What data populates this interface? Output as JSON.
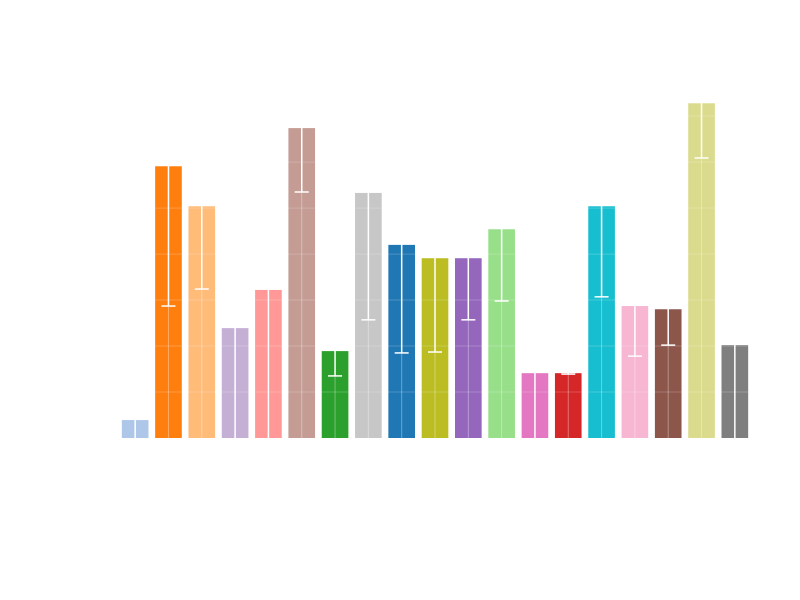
{
  "chart_data": {
    "type": "bar",
    "title": "",
    "xlabel": "",
    "ylabel": "",
    "x": [
      0,
      1,
      2,
      3,
      4,
      5,
      6,
      7,
      8,
      9,
      10,
      11,
      12,
      13,
      14,
      15,
      16,
      17,
      18
    ],
    "values": [
      0.39,
      5.91,
      5.04,
      2.39,
      3.22,
      6.74,
      1.89,
      5.33,
      4.2,
      3.91,
      3.91,
      4.54,
      1.41,
      1.41,
      5.04,
      2.87,
      2.8,
      7.28,
      2.02
    ],
    "errors": [
      0.6,
      3.04,
      1.8,
      2.6,
      3.4,
      1.39,
      0.54,
      2.76,
      2.35,
      2.04,
      1.34,
      1.56,
      1.6,
      0.02,
      1.97,
      1.09,
      0.78,
      1.19,
      2.2
    ],
    "colors": [
      "#aec7e8",
      "#ff7f0e",
      "#ffbb78",
      "#c5b0d5",
      "#ff9896",
      "#c49c94",
      "#2ca02c",
      "#c7c7c7",
      "#1f77b4",
      "#bcbd22",
      "#9467bd",
      "#98df8a",
      "#e377c2",
      "#d62728",
      "#17becf",
      "#f7b6d2",
      "#8c564b",
      "#dbdb8d",
      "#7f7f7f"
    ],
    "error_bar_color": "#ffffff",
    "grid": true,
    "grid_color": "#ffffff",
    "axes_visible": false,
    "ylim": [
      0,
      7.96
    ],
    "xlim": [
      -0.5,
      18.5
    ]
  }
}
